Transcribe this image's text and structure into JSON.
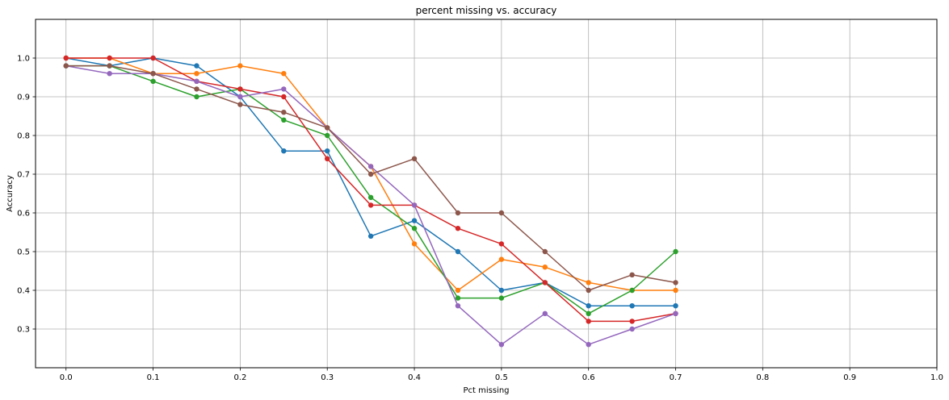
{
  "chart_data": {
    "type": "line",
    "title": "percent missing vs. accuracy",
    "xlabel": "Pct missing",
    "ylabel": "Accuracy",
    "xlim": [
      -0.035,
      1.0
    ],
    "ylim": [
      0.2,
      1.1
    ],
    "xticks": [
      0.0,
      0.1,
      0.2,
      0.3,
      0.4,
      0.5,
      0.6,
      0.7,
      0.8,
      0.9,
      1.0
    ],
    "xtick_labels": [
      "0.0",
      "0.1",
      "0.2",
      "0.3",
      "0.4",
      "0.5",
      "0.6",
      "0.7",
      "0.8",
      "0.9",
      "1.0"
    ],
    "yticks": [
      0.3,
      0.4,
      0.5,
      0.6,
      0.7,
      0.8,
      0.9,
      1.0
    ],
    "ytick_labels": [
      "0.3",
      "0.4",
      "0.5",
      "0.6",
      "0.7",
      "0.8",
      "0.9",
      "1.0"
    ],
    "grid": true,
    "x": [
      0.0,
      0.05,
      0.1,
      0.15,
      0.2,
      0.25,
      0.3,
      0.35,
      0.4,
      0.45,
      0.5,
      0.55,
      0.6,
      0.65,
      0.7
    ],
    "series": [
      {
        "color": "#1f77b4",
        "values": [
          1.0,
          0.98,
          1.0,
          0.98,
          0.9,
          0.76,
          0.76,
          0.54,
          0.58,
          0.5,
          0.4,
          0.42,
          0.36,
          0.36,
          0.36
        ]
      },
      {
        "color": "#ff7f0e",
        "values": [
          1.0,
          1.0,
          0.96,
          0.96,
          0.98,
          0.96,
          0.82,
          0.72,
          0.52,
          0.4,
          0.48,
          0.46,
          0.42,
          0.4,
          0.4
        ]
      },
      {
        "color": "#2ca02c",
        "values": [
          0.98,
          0.98,
          0.94,
          0.9,
          0.92,
          0.84,
          0.8,
          0.64,
          0.56,
          0.38,
          0.38,
          0.42,
          0.34,
          0.4,
          0.5
        ]
      },
      {
        "color": "#d62728",
        "values": [
          1.0,
          1.0,
          1.0,
          0.94,
          0.92,
          0.9,
          0.74,
          0.62,
          0.62,
          0.56,
          0.52,
          0.42,
          0.32,
          0.32,
          0.34
        ]
      },
      {
        "color": "#9467bd",
        "values": [
          0.98,
          0.96,
          0.96,
          0.94,
          0.9,
          0.92,
          0.82,
          0.72,
          0.62,
          0.36,
          0.26,
          0.34,
          0.26,
          0.3,
          0.34
        ]
      },
      {
        "color": "#8c564b",
        "values": [
          0.98,
          0.98,
          0.96,
          0.92,
          0.88,
          0.86,
          0.82,
          0.7,
          0.74,
          0.6,
          0.6,
          0.5,
          0.4,
          0.44,
          0.42
        ]
      }
    ]
  }
}
